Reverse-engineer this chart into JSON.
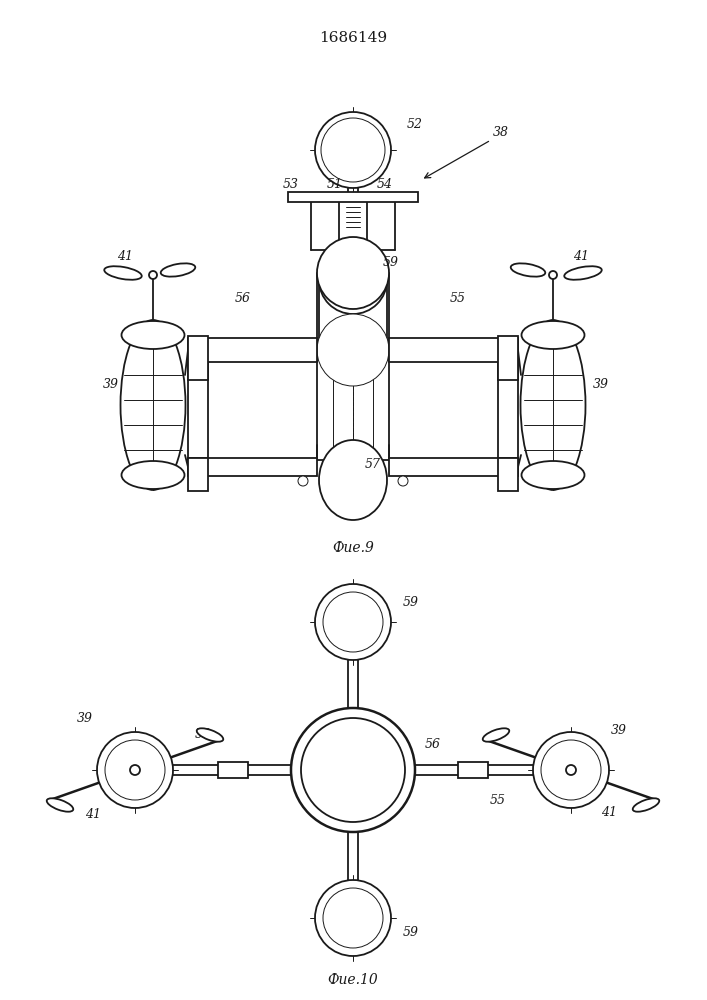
{
  "title": "1686149",
  "fig9_label": "Фие.9",
  "fig10_label": "Фие.10",
  "bg_color": "#ffffff",
  "line_color": "#1a1a1a",
  "lw": 1.3,
  "lw_t": 0.7,
  "lw_k": 1.8
}
